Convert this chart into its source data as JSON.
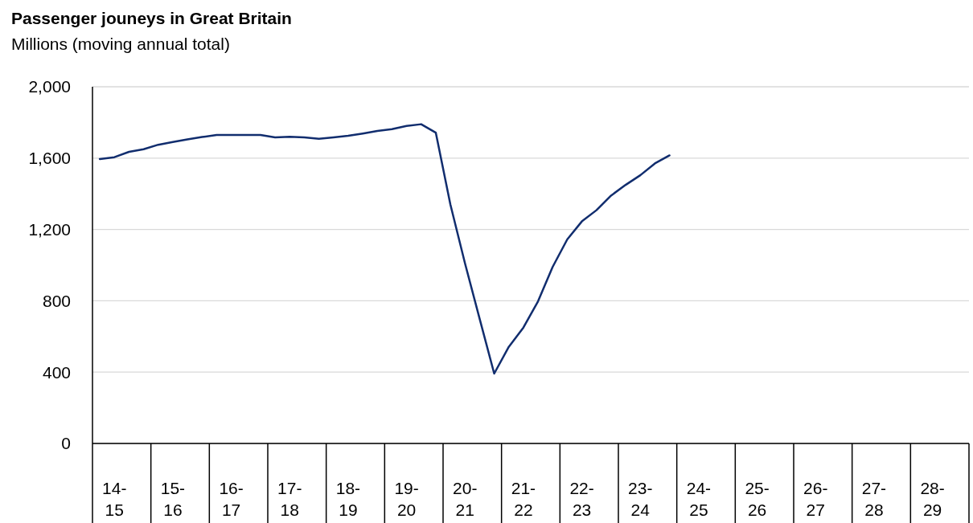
{
  "chart_data": {
    "type": "line",
    "title": "Passenger jouneys  in Great Britain",
    "subtitle": "Millions (moving annual total)",
    "categories": [
      null,
      "14-15",
      null,
      null,
      null,
      "15-16",
      null,
      null,
      null,
      "16-17",
      null,
      null,
      null,
      "17-18",
      null,
      null,
      null,
      "18-19",
      null,
      null,
      null,
      "19-20",
      null,
      null,
      null,
      "20-21",
      null,
      null,
      null,
      "21-22",
      null,
      null,
      null,
      "22-23",
      null,
      null,
      null,
      "23-24",
      null,
      null,
      null,
      "24-25",
      null,
      null,
      null,
      "25-26",
      null,
      null,
      null,
      "26-27",
      null,
      null,
      null,
      "27-28",
      null,
      null,
      null,
      "28-29",
      null,
      null
    ],
    "ylim": [
      0,
      2000
    ],
    "yticks": [
      {
        "value": 0,
        "label": "0"
      },
      {
        "value": 400,
        "label": "400"
      },
      {
        "value": 800,
        "label": "800"
      },
      {
        "value": 1200,
        "label": "1,200"
      },
      {
        "value": 1600,
        "label": "1,600"
      },
      {
        "value": 2000,
        "label": "2,000"
      }
    ],
    "grid": "y",
    "series": [
      {
        "color": "#112d6e",
        "values": [
          1595,
          1605,
          1635,
          1650,
          1675,
          1690,
          1705,
          1718,
          1730,
          1730,
          1730,
          1730,
          1716,
          1720,
          1716,
          1708,
          1716,
          1725,
          1738,
          1752,
          1762,
          1780,
          1790,
          1743,
          1340,
          1010,
          700,
          392,
          542,
          650,
          797,
          990,
          1144,
          1245,
          1308,
          1390,
          1450,
          1504,
          1570,
          1615,
          null,
          null,
          null,
          null,
          null,
          null,
          null,
          null,
          null,
          null,
          null,
          null,
          null,
          null,
          null,
          null,
          null,
          null,
          null,
          null
        ]
      }
    ]
  }
}
